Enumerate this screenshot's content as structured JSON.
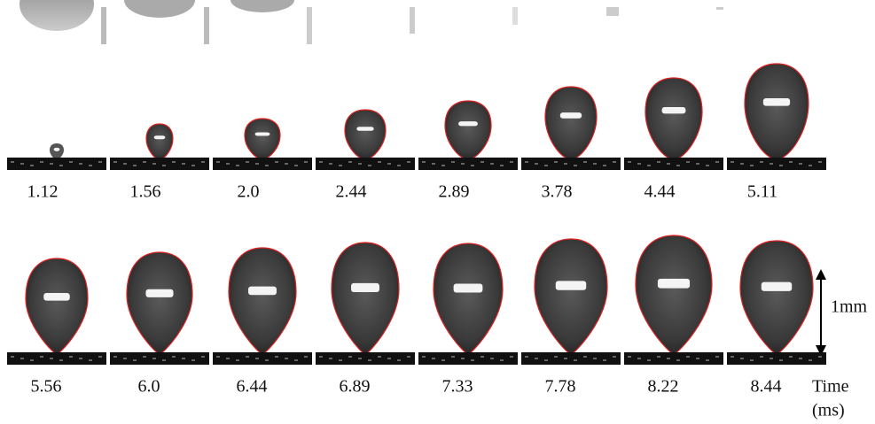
{
  "rows": [
    {
      "times": [
        "1.12",
        "1.56",
        "2.0",
        "2.44",
        "2.89",
        "3.78",
        "4.44",
        "5.11"
      ]
    },
    {
      "times": [
        "5.56",
        "6.0",
        "6.44",
        "6.89",
        "7.33",
        "7.78",
        "8.22",
        "8.44"
      ]
    }
  ],
  "scale_bar": "1mm",
  "time_label": {
    "line1": "Time",
    "line2": "(ms)"
  }
}
